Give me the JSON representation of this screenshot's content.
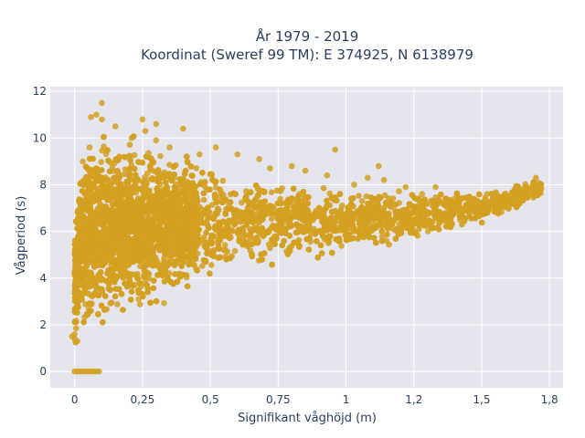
{
  "chart_data": {
    "type": "scatter",
    "title_lines": [
      "År 1979 - 2019",
      "Koordinat (Sweref 99 TM): E 374925, N 6138979"
    ],
    "xlabel": "Signifikant våghöjd (m)",
    "ylabel": "Vågperiod (s)",
    "xlim": [
      -0.09,
      1.8
    ],
    "ylim": [
      -0.7,
      12.2
    ],
    "x_ticks": [
      0,
      0.25,
      0.5,
      0.75,
      1,
      1.25,
      1.5,
      1.75
    ],
    "x_tick_labels": [
      "0",
      "0,25",
      "0,5",
      "0,75",
      "1",
      "1,2",
      "1,5",
      "1,8"
    ],
    "y_ticks": [
      0,
      2,
      4,
      6,
      8,
      10,
      12
    ],
    "y_tick_labels": [
      "0",
      "2",
      "4",
      "6",
      "8",
      "10",
      "12"
    ],
    "grid": true,
    "marker_color": "#d4a020",
    "background_color": "#e5e5ee",
    "envelope": {
      "description": "dense cloud",
      "x": [
        0,
        0.02,
        0.05,
        0.1,
        0.2,
        0.3,
        0.5,
        0.75,
        1.0,
        1.25,
        1.5,
        1.6,
        1.7
      ],
      "y_min": [
        1.0,
        1.1,
        1.2,
        1.4,
        2.0,
        2.6,
        3.6,
        4.3,
        4.8,
        5.5,
        6.3,
        6.8,
        7.4
      ],
      "y_max": [
        6.8,
        9.0,
        10.5,
        10.8,
        10.3,
        9.8,
        9.2,
        8.6,
        8.2,
        7.8,
        7.8,
        8.0,
        8.2
      ]
    },
    "series": [
      {
        "x": [
          0.06,
          0.1,
          0.08,
          0.1,
          0.15,
          0.21,
          0.26,
          0.3,
          0.35,
          0.4,
          0.46,
          0.52,
          0.6,
          0.68,
          0.72,
          0.8,
          0.85,
          0.93,
          0.96,
          1.03,
          1.08,
          1.12,
          1.14,
          1.22,
          1.28,
          1.33,
          1.4,
          1.52,
          1.63,
          1.66,
          1.7,
          0.02,
          0.03,
          0.25,
          0.3
        ],
        "y": [
          10.9,
          11.5,
          11.0,
          10.8,
          10.5,
          10.0,
          10.3,
          9.9,
          9.6,
          10.4,
          9.3,
          9.6,
          9.3,
          9.1,
          8.7,
          8.8,
          8.6,
          8.4,
          9.5,
          8.0,
          8.3,
          8.8,
          8.2,
          7.9,
          7.6,
          7.9,
          7.4,
          7.6,
          7.8,
          7.9,
          8.3,
          7.0,
          9.0,
          10.8,
          10.6
        ]
      },
      {
        "x": [
          0.0,
          0.01,
          0.02,
          0.03,
          0.04,
          0.05,
          0.06,
          0.07,
          0.08,
          0.09
        ],
        "y": [
          0,
          0,
          0,
          0,
          0,
          0,
          0,
          0,
          0,
          0
        ]
      },
      {
        "x": [
          -0.01,
          0.0,
          0.0,
          0.01
        ],
        "y": [
          1.5,
          1.4,
          1.6,
          1.3
        ]
      }
    ]
  }
}
